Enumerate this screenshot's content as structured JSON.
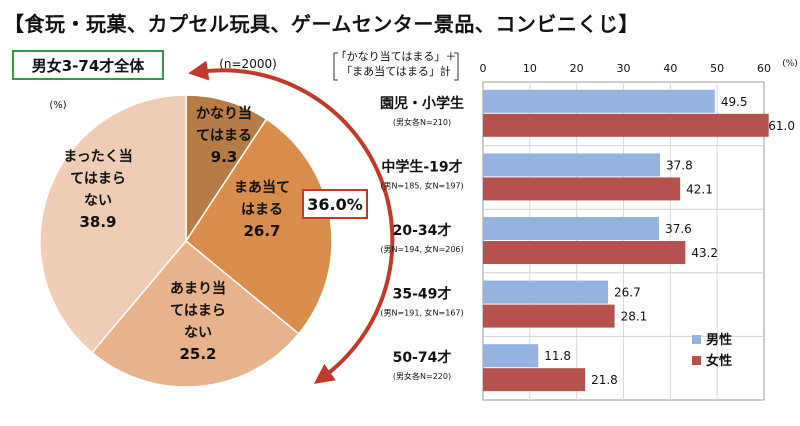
{
  "title": "【食玩・玩菓、カプセル玩具、ゲームセンター景品、コンビニくじ】",
  "group_label": "男女3-74才全体",
  "colors": {
    "pie": [
      "#b77c45",
      "#d88d4c",
      "#e7b28c",
      "#efccb6"
    ],
    "male": "#95b3de",
    "female": "#b6524d",
    "arrow": "#c0392b",
    "group_border": "#2f9a48"
  },
  "chart_data": [
    {
      "type": "pie",
      "unit_label": "(%)",
      "sample_label": "(n=2000)",
      "total_label": "36.0%",
      "slices": [
        {
          "label_lines": [
            "かなり当",
            "てはまる"
          ],
          "value": 9.3,
          "value_label": "9.3"
        },
        {
          "label_lines": [
            "まあ当て",
            "はまる"
          ],
          "value": 26.7,
          "value_label": "26.7"
        },
        {
          "label_lines": [
            "あまり当",
            "てはまら",
            "ない"
          ],
          "value": 25.2,
          "value_label": "25.2"
        },
        {
          "label_lines": [
            "まったく当",
            "てはまら",
            "ない"
          ],
          "value": 38.9,
          "value_label": "38.9"
        }
      ]
    },
    {
      "type": "bar",
      "orientation": "horizontal",
      "axis_title_lines": [
        "「かなり当てはまる」＋",
        "「まあ当てはまる」計"
      ],
      "unit_label": "(%)",
      "xlim": [
        0,
        60
      ],
      "ticks": [
        "0",
        "10",
        "20",
        "30",
        "40",
        "50",
        "60"
      ],
      "grid": true,
      "legend_position": "bottom-right",
      "categories": [
        {
          "label": "園児・小学生",
          "sub": "(男女各N=210)"
        },
        {
          "label": "中学生-19才",
          "sub": "(男N=185, 女N=197)"
        },
        {
          "label": "20-34才",
          "sub": "(男N=194, 女N=206)"
        },
        {
          "label": "35-49才",
          "sub": "(男N=191, 女N=167)"
        },
        {
          "label": "50-74才",
          "sub": "(男女各N=220)"
        }
      ],
      "series": [
        {
          "name": "男性",
          "values": [
            49.5,
            37.8,
            37.6,
            26.7,
            11.8
          ],
          "value_labels": [
            "49.5",
            "37.8",
            "37.6",
            "26.7",
            "11.8"
          ]
        },
        {
          "name": "女性",
          "values": [
            61.0,
            42.1,
            43.2,
            28.1,
            21.8
          ],
          "value_labels": [
            "61.0",
            "42.1",
            "43.2",
            "28.1",
            "21.8"
          ]
        }
      ]
    }
  ]
}
